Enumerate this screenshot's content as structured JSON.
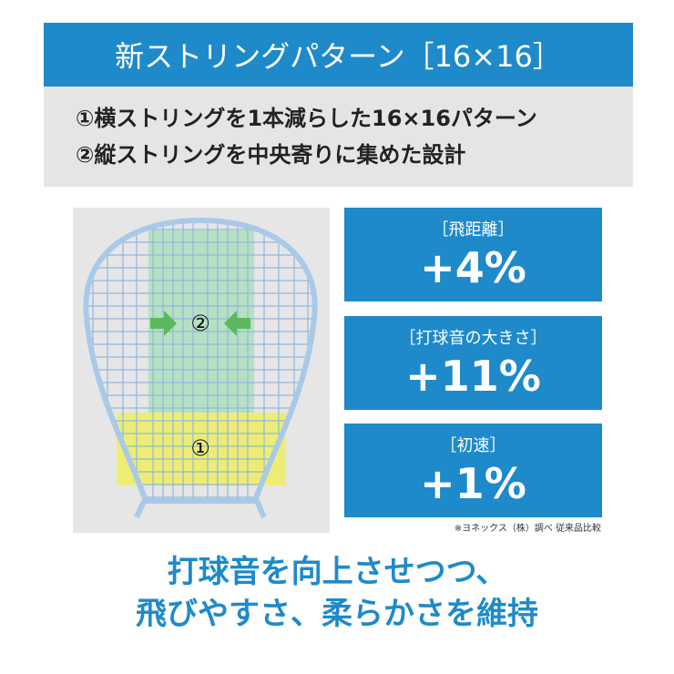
{
  "header": {
    "title": "新ストリングパターン［16×16］"
  },
  "features": [
    "①横ストリングを1本減らした16×16パターン",
    "②縦ストリングを中央寄りに集めた設計"
  ],
  "racket": {
    "label_1": "①",
    "label_2": "②"
  },
  "stats": [
    {
      "label": "［飛距離］",
      "value": "+4%"
    },
    {
      "label": "［打球音の大きさ］",
      "value": "+11%"
    },
    {
      "label": "［初速］",
      "value": "+1%"
    }
  ],
  "note": "※ヨネックス（株）調べ 従来品比較",
  "footer": [
    "打球音を向上させつつ、",
    "飛びやすさ、柔らかさを維持"
  ]
}
